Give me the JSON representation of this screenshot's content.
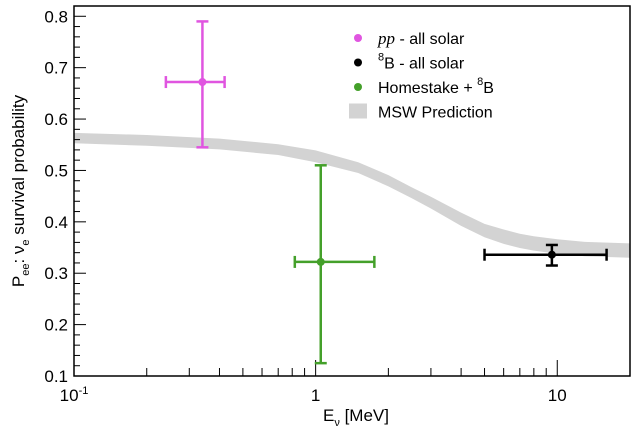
{
  "chart_data": {
    "type": "scatter",
    "title": "",
    "xlabel": {
      "main": "E",
      "sub": "ν",
      "rest": " [MeV]"
    },
    "ylabel": {
      "p": "P",
      "p_sub": "ee",
      "colon": ":  ",
      "nu": "ν",
      "nu_sub": "e",
      "rest": " survival probability"
    },
    "x_scale": "log",
    "xlim": [
      0.1,
      20
    ],
    "ylim": [
      0.1,
      0.82
    ],
    "y_ticks": [
      0.1,
      0.2,
      0.3,
      0.4,
      0.5,
      0.6,
      0.7,
      0.8
    ],
    "y_tick_labels": [
      "0.1",
      "0.2",
      "0.3",
      "0.4",
      "0.5",
      "0.6",
      "0.7",
      "0.8"
    ],
    "x_tick_labels": [
      {
        "value": 0.1,
        "base": "10",
        "exp": "-1"
      },
      {
        "value": 1,
        "base": "1",
        "exp": ""
      },
      {
        "value": 10,
        "base": "10",
        "exp": ""
      }
    ],
    "grid": false,
    "legend_position": "top-right",
    "series": [
      {
        "legend_parts": [
          {
            "t": "pp",
            "style": "italic"
          },
          {
            "t": " - all solar",
            "style": "normal"
          }
        ],
        "color": "#e055e0",
        "points": [
          {
            "x": 0.34,
            "y": 0.672,
            "xerr_low": 0.24,
            "xerr_high": 0.42,
            "yerr_low": 0.545,
            "yerr_high": 0.79
          }
        ]
      },
      {
        "legend_parts": [
          {
            "t": "8",
            "style": "sup"
          },
          {
            "t": "B - all solar",
            "style": "normal"
          }
        ],
        "color": "#000000",
        "points": [
          {
            "x": 9.5,
            "y": 0.336,
            "xerr_low": 5.0,
            "xerr_high": 16.0,
            "yerr_low": 0.315,
            "yerr_high": 0.355
          }
        ]
      },
      {
        "legend_parts": [
          {
            "t": "Homestake + ",
            "style": "normal"
          },
          {
            "t": "8",
            "style": "sup"
          },
          {
            "t": "B",
            "style": "normal"
          }
        ],
        "color": "#44a02a",
        "points": [
          {
            "x": 1.05,
            "y": 0.322,
            "xerr_low": 0.82,
            "xerr_high": 1.75,
            "yerr_low": 0.125,
            "yerr_high": 0.51
          }
        ]
      }
    ],
    "band": {
      "legend_parts": [
        {
          "t": "MSW Prediction",
          "style": "normal"
        }
      ],
      "color": "#d3d3d3",
      "x": [
        0.1,
        0.2,
        0.4,
        0.7,
        1.0,
        1.5,
        2.0,
        2.5,
        3.0,
        4.0,
        5.0,
        6.0,
        7.0,
        8.0,
        10.0,
        13.0,
        20.0
      ],
      "lower": [
        0.553,
        0.548,
        0.541,
        0.53,
        0.516,
        0.495,
        0.469,
        0.446,
        0.426,
        0.392,
        0.37,
        0.357,
        0.349,
        0.344,
        0.338,
        0.333,
        0.33
      ],
      "upper": [
        0.573,
        0.569,
        0.562,
        0.551,
        0.539,
        0.516,
        0.491,
        0.467,
        0.449,
        0.418,
        0.396,
        0.385,
        0.377,
        0.372,
        0.366,
        0.361,
        0.358
      ]
    }
  }
}
